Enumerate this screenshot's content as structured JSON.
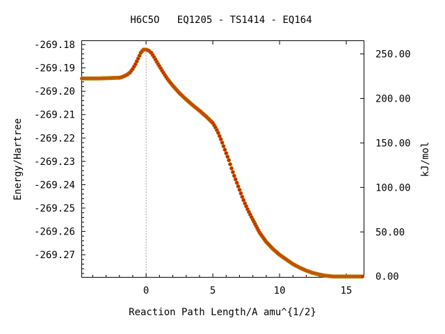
{
  "chart_data": {
    "type": "scatter",
    "title": "H6C5O   EQ1205 - TS1414 - EQ164",
    "xlabel": "Reaction Path Length/A amu^{1/2}",
    "ylabel": "Energy/Hartree",
    "y2label": "kJ/mol",
    "xlim": [
      -4.8,
      16.3
    ],
    "ylim": [
      -269.2795,
      -269.1785
    ],
    "y2lim": [
      -0.6,
      264.5
    ],
    "grid": false,
    "legend": "none",
    "ts_marker_x": 0,
    "x_ticks": [
      0,
      5,
      10,
      15
    ],
    "x_tick_labels": [
      "0",
      "5",
      "10",
      "15"
    ],
    "y_ticks": [
      -269.18,
      -269.19,
      -269.2,
      -269.21,
      -269.22,
      -269.23,
      -269.24,
      -269.25,
      -269.26,
      -269.27
    ],
    "y_tick_labels": [
      "-269.18",
      "-269.19",
      "-269.20",
      "-269.21",
      "-269.22",
      "-269.23",
      "-269.24",
      "-269.25",
      "-269.26",
      "-269.27"
    ],
    "y2_ticks": [
      0,
      50,
      100,
      150,
      200,
      250
    ],
    "y2_tick_labels": [
      "0.00",
      "50.00",
      "100.00",
      "150.00",
      "200.00",
      "250.00"
    ],
    "colors": {
      "marker_fill": "#cc2200",
      "marker_edge": "#b8860b",
      "ts_line": "#999999"
    },
    "series": [
      {
        "x": [
          -4.8,
          -4.5,
          -4.0,
          -3.5,
          -3.0,
          -2.5,
          -2.0,
          -1.8,
          -1.6,
          -1.4,
          -1.2,
          -1.0,
          -0.8,
          -0.6,
          -0.4,
          -0.2,
          0.0,
          0.2,
          0.4,
          0.6,
          0.8,
          1.0,
          1.2,
          1.4,
          1.6,
          1.8,
          2.0,
          2.5,
          3.0,
          3.5,
          4.0,
          4.5,
          5.0,
          5.2,
          5.4,
          5.6,
          5.8,
          6.0,
          6.2,
          6.4,
          6.6,
          6.8,
          7.0,
          7.2,
          7.4,
          7.6,
          7.8,
          8.0,
          8.5,
          9.0,
          9.5,
          10.0,
          10.5,
          11.0,
          11.5,
          12.0,
          12.5,
          13.0,
          13.5,
          14.0,
          14.5,
          15.0,
          15.5,
          16.2
        ],
        "y": [
          -269.1945,
          -269.1945,
          -269.1945,
          -269.1945,
          -269.1944,
          -269.1943,
          -269.1942,
          -269.1939,
          -269.1934,
          -269.1928,
          -269.1919,
          -269.1904,
          -269.1884,
          -269.186,
          -269.1835,
          -269.1822,
          -269.1822,
          -269.1826,
          -269.1836,
          -269.1854,
          -269.1874,
          -269.1893,
          -269.1912,
          -269.193,
          -269.1947,
          -269.1962,
          -269.1976,
          -269.2008,
          -269.2035,
          -269.206,
          -269.2083,
          -269.2108,
          -269.2136,
          -269.2155,
          -269.2178,
          -269.2205,
          -269.2235,
          -269.2265,
          -269.2295,
          -269.233,
          -269.2362,
          -269.2392,
          -269.2422,
          -269.2452,
          -269.248,
          -269.2505,
          -269.2528,
          -269.255,
          -269.2605,
          -269.2645,
          -269.2675,
          -269.27,
          -269.272,
          -269.274,
          -269.2755,
          -269.2768,
          -269.2778,
          -269.2785,
          -269.279,
          -269.2793,
          -269.2793,
          -269.2793,
          -269.2793,
          -269.2793
        ]
      }
    ]
  }
}
